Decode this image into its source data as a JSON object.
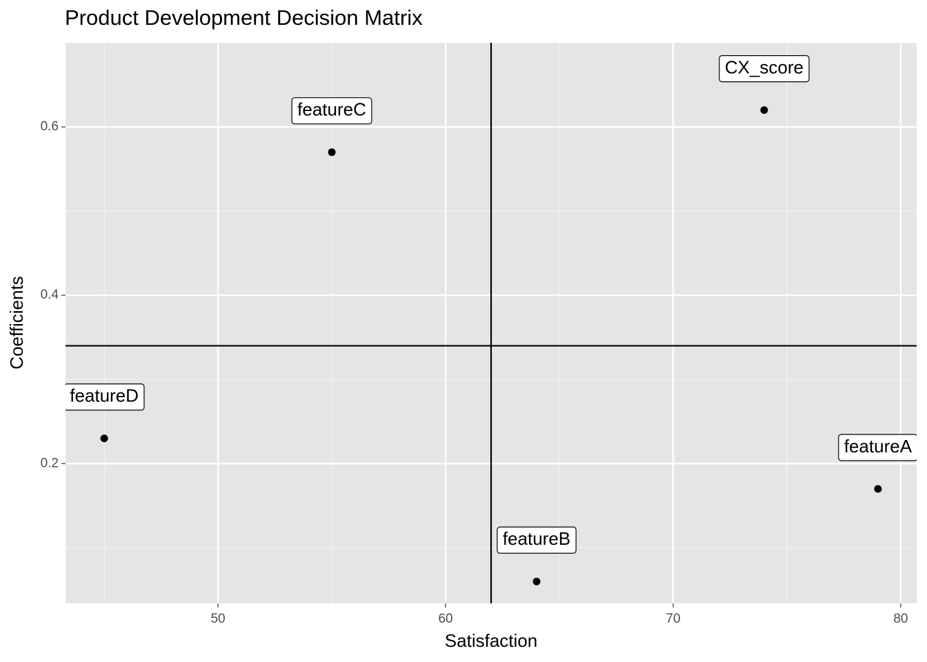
{
  "chart_data": {
    "type": "scatter",
    "title": "Product Development Decision Matrix",
    "x_label": "Satisfaction",
    "y_label": "Coefficients",
    "labels": [
      "featureD",
      "featureC",
      "CX_score",
      "featureA",
      "featureB"
    ],
    "x": [
      45,
      55,
      74,
      79,
      64
    ],
    "values": [
      0.23,
      0.57,
      0.62,
      0.17,
      0.06
    ],
    "color": "#000000",
    "xlim": [
      43.3,
      80.7
    ],
    "ylim": [
      0.034,
      0.7
    ],
    "xticks": [
      50,
      60,
      70,
      80
    ],
    "yticks": [
      0.2,
      0.4,
      0.6
    ],
    "vline": 62,
    "hline": 0.34,
    "grid": true
  }
}
